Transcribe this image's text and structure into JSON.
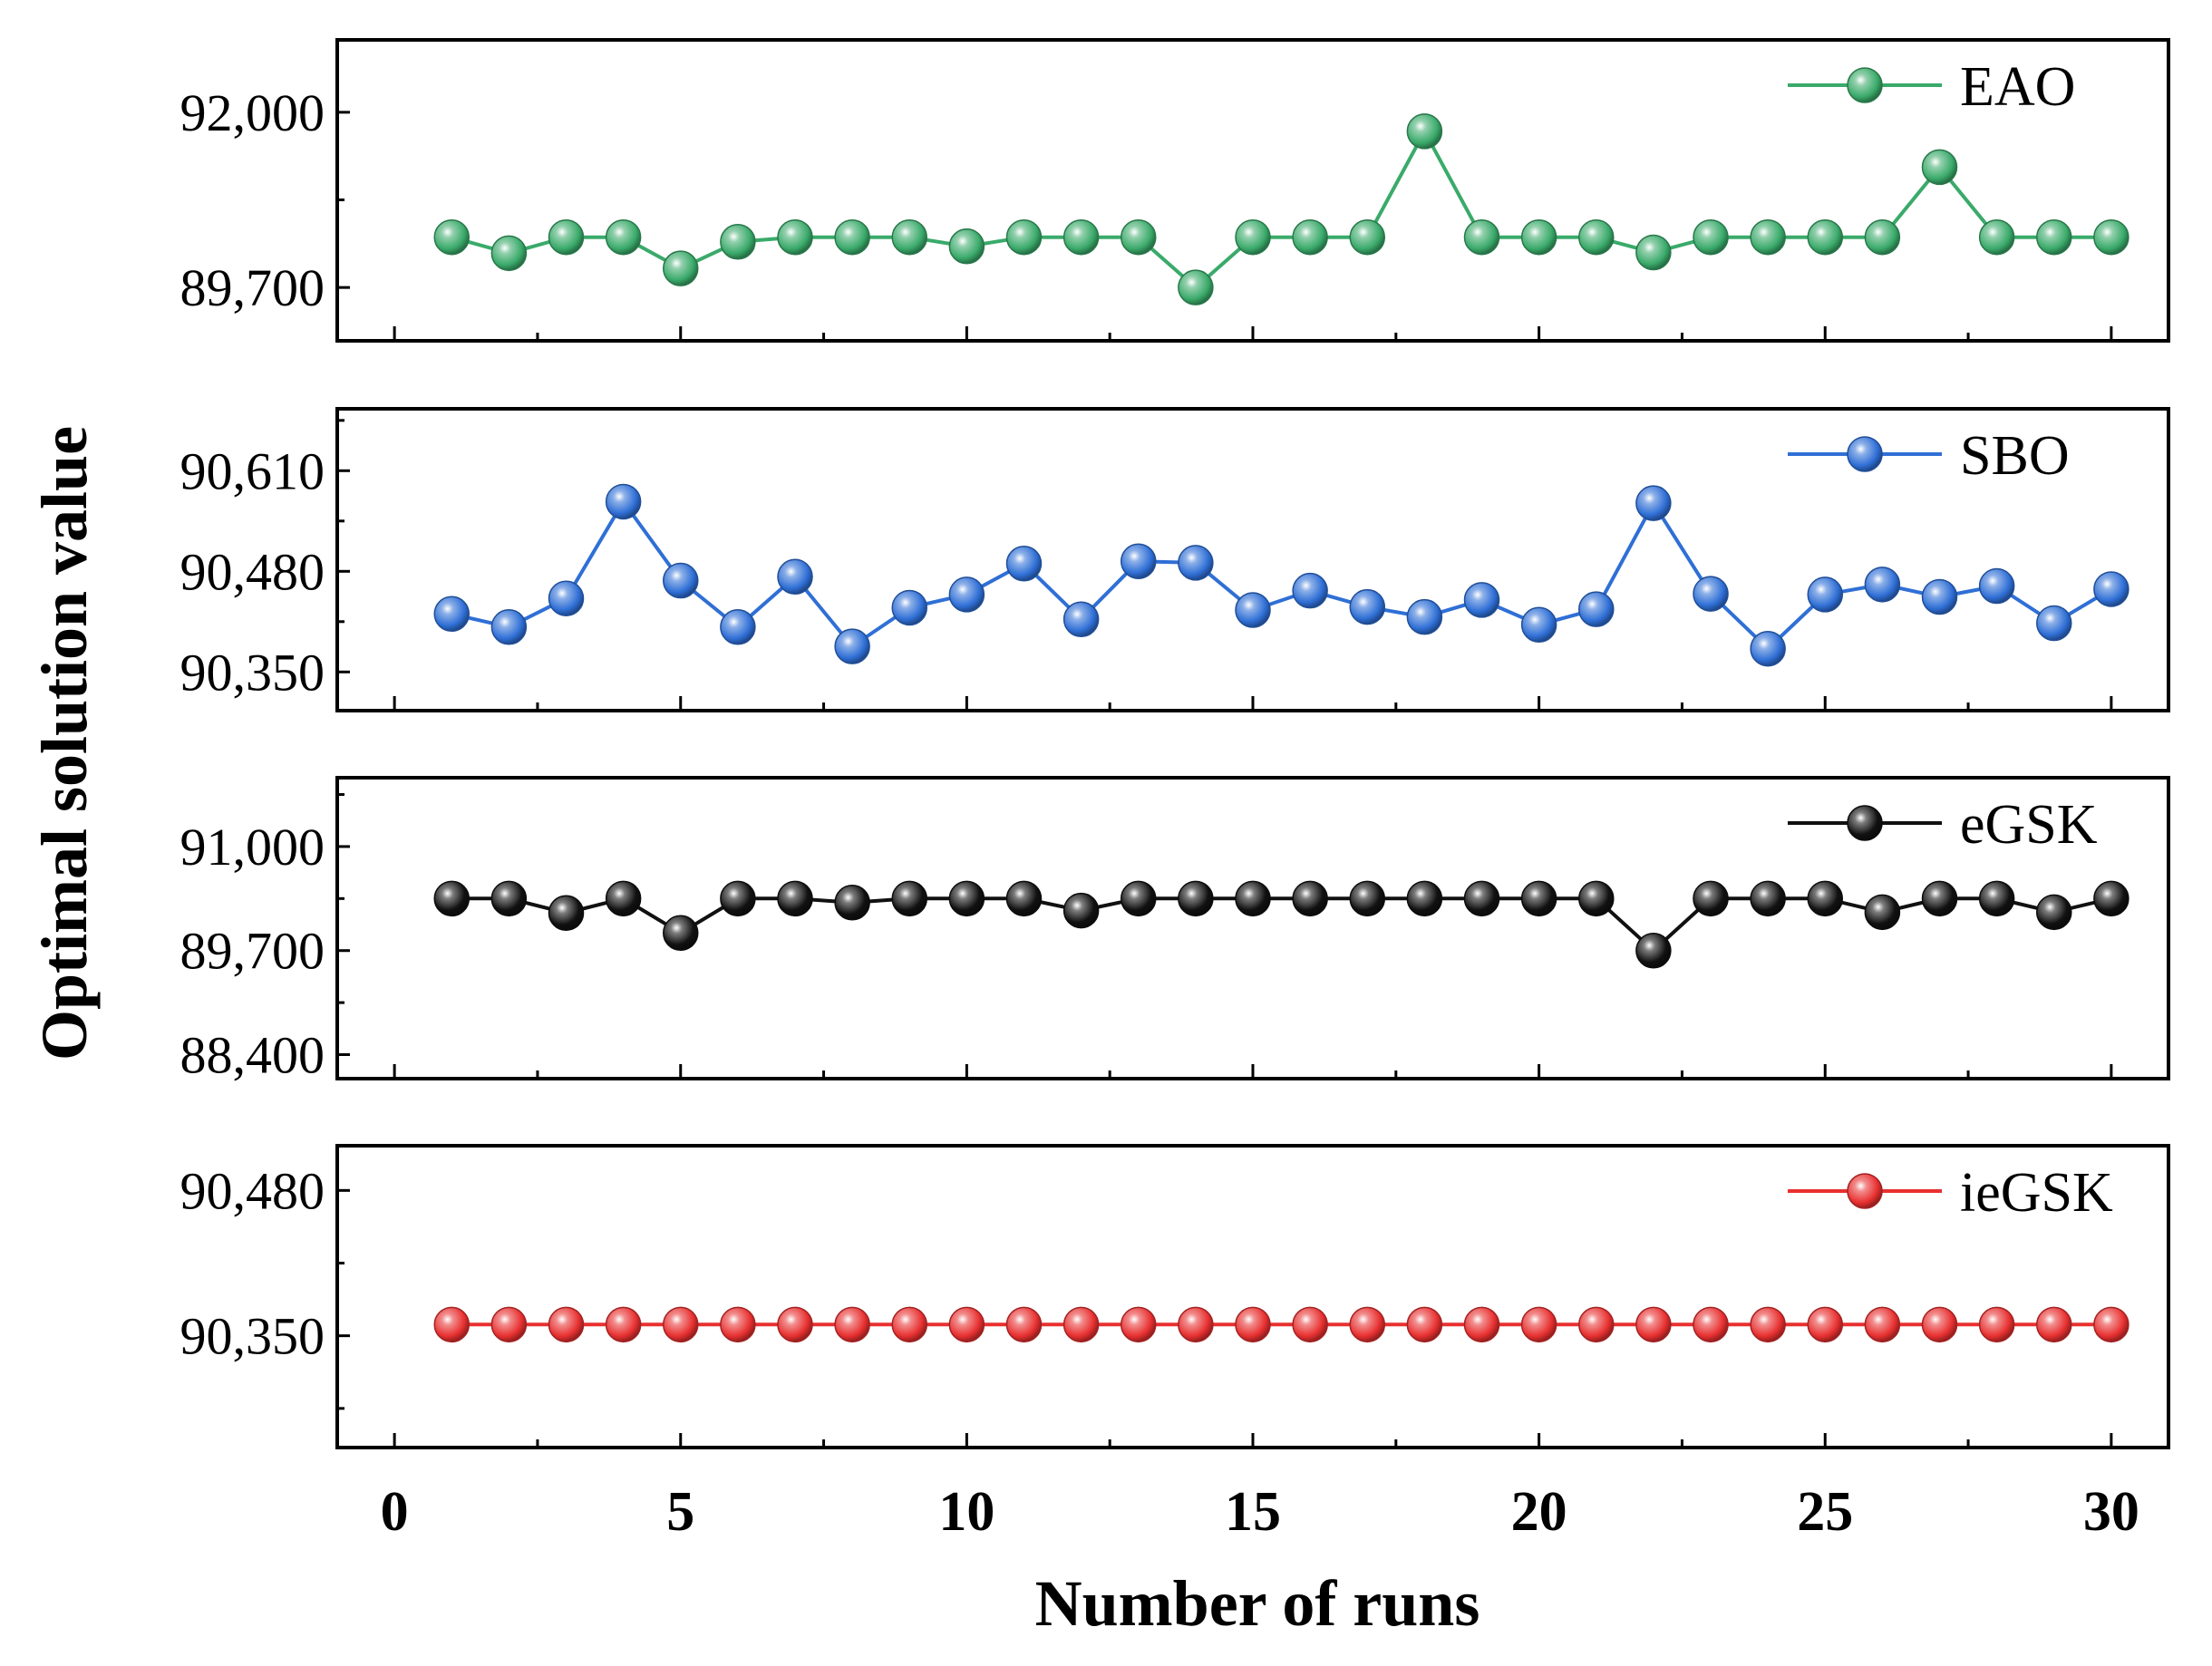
{
  "chart_data": {
    "type": "line",
    "xlabel": "Number of runs",
    "ylabel": "Optimal solution value",
    "xlim": [
      -1,
      31
    ],
    "xticks": [
      0,
      5,
      10,
      15,
      20,
      25,
      30
    ],
    "x": [
      1,
      2,
      3,
      4,
      5,
      6,
      7,
      8,
      9,
      10,
      11,
      12,
      13,
      14,
      15,
      16,
      17,
      18,
      19,
      20,
      21,
      22,
      23,
      24,
      25,
      26,
      27,
      28,
      29,
      30
    ],
    "panels": [
      {
        "name": "EAO",
        "color": "#3aaa6a",
        "ylim": [
          89000,
          92950
        ],
        "yticks": [
          89700,
          92000
        ],
        "ytick_labels": [
          "89,700",
          "92,000"
        ],
        "values": [
          90360,
          90150,
          90360,
          90360,
          89950,
          90300,
          90360,
          90360,
          90360,
          90240,
          90360,
          90360,
          90360,
          89700,
          90360,
          90360,
          90360,
          91750,
          90360,
          90360,
          90360,
          90160,
          90360,
          90360,
          90360,
          90360,
          91280,
          90360,
          90360,
          90360
        ]
      },
      {
        "name": "SBO",
        "color": "#2f6fd6",
        "ylim": [
          90300,
          90690
        ],
        "yticks": [
          90350,
          90480,
          90610
        ],
        "ytick_labels": [
          "90,350",
          "90,480",
          "90,610"
        ],
        "values": [
          90425,
          90408,
          90445,
          90570,
          90468,
          90408,
          90473,
          90383,
          90433,
          90450,
          90490,
          90418,
          90493,
          90491,
          90430,
          90455,
          90434,
          90421,
          90443,
          90411,
          90431,
          90568,
          90451,
          90380,
          90450,
          90463,
          90447,
          90461,
          90413,
          90457
        ]
      },
      {
        "name": "eGSK",
        "color": "#111111",
        "ylim": [
          88100,
          91860
        ],
        "yticks": [
          88400,
          89700,
          91000
        ],
        "ytick_labels": [
          "88,400",
          "89,700",
          "91,000"
        ],
        "values": [
          90350,
          90350,
          90170,
          90350,
          89920,
          90350,
          90350,
          90300,
          90350,
          90350,
          90350,
          90200,
          90350,
          90350,
          90350,
          90350,
          90350,
          90350,
          90350,
          90350,
          90350,
          89700,
          90350,
          90350,
          90350,
          90180,
          90350,
          90350,
          90180,
          90350
        ]
      },
      {
        "name": "ieGSK",
        "color": "#e83030",
        "ylim": [
          90250,
          90520
        ],
        "yticks": [
          90350,
          90480
        ],
        "ytick_labels": [
          "90,350",
          "90,480"
        ],
        "values": [
          90360,
          90360,
          90360,
          90360,
          90360,
          90360,
          90360,
          90360,
          90360,
          90360,
          90360,
          90360,
          90360,
          90360,
          90360,
          90360,
          90360,
          90360,
          90360,
          90360,
          90360,
          90360,
          90360,
          90360,
          90360,
          90360,
          90360,
          90360,
          90360,
          90360
        ]
      }
    ]
  }
}
